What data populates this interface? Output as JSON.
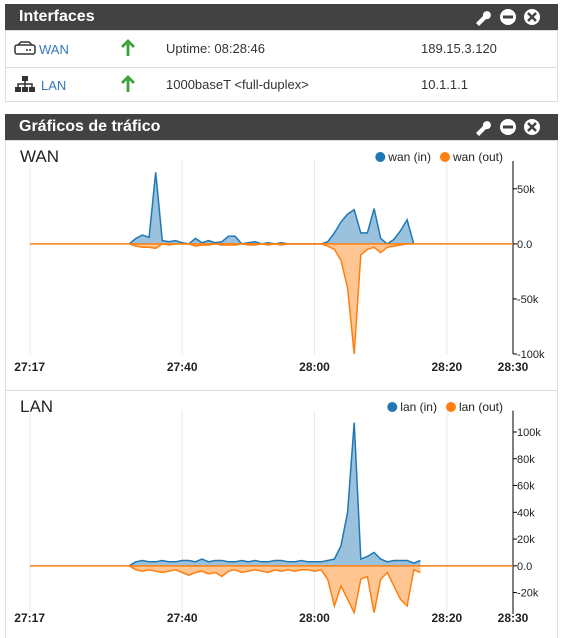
{
  "interfaces": {
    "title": "Interfaces",
    "rows": [
      {
        "name": "WAN",
        "info": "Uptime: 08:28:46",
        "ip": "189.15.3.120"
      },
      {
        "name": "LAN",
        "info": "1000baseT <full-duplex>",
        "ip": "10.1.1.1"
      }
    ]
  },
  "traffic_graphs": {
    "title": "Gráficos de tráfico"
  },
  "chart_data": [
    {
      "type": "area",
      "title": "WAN",
      "x": [
        1652,
        1653,
        1654,
        1655,
        1656,
        1657,
        1658,
        1659,
        1660,
        1661,
        1662,
        1663,
        1664,
        1665,
        1666,
        1667,
        1668,
        1669,
        1670,
        1671,
        1672,
        1673,
        1674,
        1675,
        1676,
        1677,
        1678,
        1679,
        1680,
        1681,
        1682,
        1683,
        1684,
        1685,
        1686,
        1687,
        1688,
        1689,
        1690,
        1691,
        1692,
        1693,
        1694,
        1695
      ],
      "series": [
        {
          "name": "wan (in)",
          "color": "#1f77b4",
          "values": [
            0,
            5000,
            8000,
            6000,
            65000,
            3000,
            2000,
            3000,
            1000,
            0,
            5000,
            1000,
            3000,
            1000,
            2000,
            7000,
            7000,
            0,
            1000,
            2000,
            0,
            1000,
            0,
            1000,
            0,
            0,
            0,
            0,
            0,
            0,
            2000,
            10000,
            20000,
            27000,
            31000,
            10000,
            10000,
            32000,
            5000,
            0,
            4000,
            12000,
            22000,
            0
          ]
        },
        {
          "name": "wan (out)",
          "color": "#ff7f0e",
          "values": [
            0,
            -2000,
            -3000,
            -3000,
            -4000,
            0,
            -1000,
            0,
            0,
            0,
            -2000,
            -1000,
            -1000,
            0,
            -1000,
            -1000,
            -1000,
            0,
            -1000,
            -1000,
            0,
            -1000,
            0,
            -1000,
            0,
            0,
            0,
            0,
            0,
            0,
            -2000,
            -5000,
            -15000,
            -40000,
            -100000,
            -10000,
            -5000,
            -3000,
            -8000,
            -3000,
            -2000,
            -1000,
            0,
            0
          ]
        }
      ],
      "xlim": [
        1637,
        1710
      ],
      "xticks": [
        {
          "value": 1637,
          "label": "27:17"
        },
        {
          "value": 1660,
          "label": "27:40"
        },
        {
          "value": 1680,
          "label": "28:00"
        },
        {
          "value": 1700,
          "label": "28:20"
        },
        {
          "value": 1710,
          "label": "28:30"
        }
      ],
      "ylim": [
        -100000,
        68000
      ],
      "yticks": [
        {
          "value": 50000,
          "label": "50k"
        },
        {
          "value": 0,
          "label": "0.0"
        },
        {
          "value": -50000,
          "label": "-50k"
        },
        {
          "value": -100000,
          "label": "-100k"
        }
      ],
      "grid": true,
      "legend": "top-right"
    },
    {
      "type": "area",
      "title": "LAN",
      "x": [
        1652,
        1653,
        1654,
        1655,
        1656,
        1657,
        1658,
        1659,
        1660,
        1661,
        1662,
        1663,
        1664,
        1665,
        1666,
        1667,
        1668,
        1669,
        1670,
        1671,
        1672,
        1673,
        1674,
        1675,
        1676,
        1677,
        1678,
        1679,
        1680,
        1681,
        1682,
        1683,
        1684,
        1685,
        1686,
        1687,
        1688,
        1689,
        1690,
        1691,
        1692,
        1693,
        1694,
        1695,
        1696
      ],
      "series": [
        {
          "name": "lan (in)",
          "color": "#1f77b4",
          "values": [
            0,
            3000,
            4000,
            3000,
            3000,
            4000,
            3000,
            3000,
            4000,
            4000,
            3000,
            5000,
            3000,
            4000,
            4000,
            3000,
            3000,
            4000,
            3000,
            4000,
            3000,
            3000,
            4000,
            4000,
            3000,
            3000,
            4000,
            3000,
            3000,
            3000,
            4000,
            5000,
            15000,
            40000,
            107000,
            5000,
            7000,
            10000,
            5000,
            3000,
            4000,
            4000,
            4000,
            2000,
            4000
          ]
        },
        {
          "name": "lan (out)",
          "color": "#ff7f0e",
          "values": [
            0,
            -3000,
            -4000,
            -3000,
            -4000,
            -5000,
            -4000,
            -3000,
            -5000,
            -7000,
            -5000,
            -4000,
            -6000,
            -5000,
            -8000,
            -4000,
            -3000,
            -5000,
            -4000,
            -3000,
            -4000,
            -5000,
            -3000,
            -4000,
            -3000,
            -4000,
            -3000,
            -3000,
            -4000,
            -3000,
            -10000,
            -30000,
            -15000,
            -25000,
            -35000,
            -10000,
            -8000,
            -35000,
            -10000,
            -5000,
            -15000,
            -25000,
            -30000,
            -3000,
            -5000
          ]
        }
      ],
      "xlim": [
        1637,
        1710
      ],
      "xticks": [
        {
          "value": 1637,
          "label": "27:17"
        },
        {
          "value": 1660,
          "label": "27:40"
        },
        {
          "value": 1680,
          "label": "28:00"
        },
        {
          "value": 1700,
          "label": "28:20"
        },
        {
          "value": 1710,
          "label": "28:30"
        }
      ],
      "ylim": [
        -36000,
        110000
      ],
      "yticks": [
        {
          "value": 100000,
          "label": "100k"
        },
        {
          "value": 80000,
          "label": "80k"
        },
        {
          "value": 60000,
          "label": "60k"
        },
        {
          "value": 40000,
          "label": "40k"
        },
        {
          "value": 20000,
          "label": "20k"
        },
        {
          "value": 0,
          "label": "0.0"
        },
        {
          "value": -20000,
          "label": "-20k"
        }
      ],
      "grid": true,
      "legend": "top-right"
    }
  ]
}
